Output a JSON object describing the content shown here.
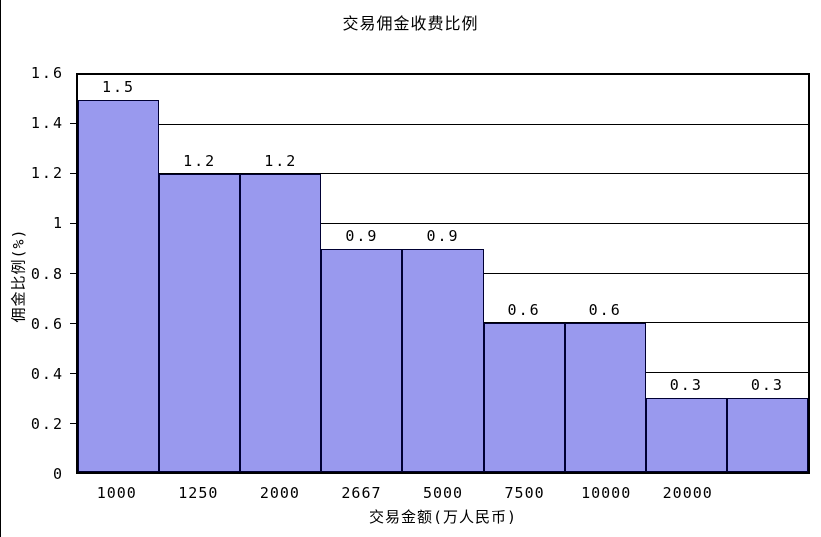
{
  "chart_data": {
    "type": "bar",
    "title": "交易佣金收费比例",
    "xlabel": "交易金额(万人民币)",
    "ylabel": "佣金比例(%)",
    "categories": [
      "1000",
      "1250",
      "2000",
      "2667",
      "5000",
      "7500",
      "10000",
      "20000",
      ""
    ],
    "values": [
      1.5,
      1.2,
      1.2,
      0.9,
      0.9,
      0.6,
      0.6,
      0.3,
      0.3
    ],
    "value_labels": [
      "1.5",
      "1.2",
      "1.2",
      "0.9",
      "0.9",
      "0.6",
      "0.6",
      "0.3",
      "0.3"
    ],
    "ylim": [
      0,
      1.6
    ],
    "ytick_step": 0.2,
    "ytick_labels": [
      "0",
      "0.2",
      "0.4",
      "0.6",
      "0.8",
      "1",
      "1.2",
      "1.4",
      "1.6"
    ],
    "grid": "horizontal",
    "legend": "none",
    "gap_width": 0,
    "colors": {
      "bar_fill": "#9999EE",
      "bar_border": "#000033",
      "axis": "#000000",
      "background": "#FFFFFF",
      "text": "#000000"
    }
  }
}
